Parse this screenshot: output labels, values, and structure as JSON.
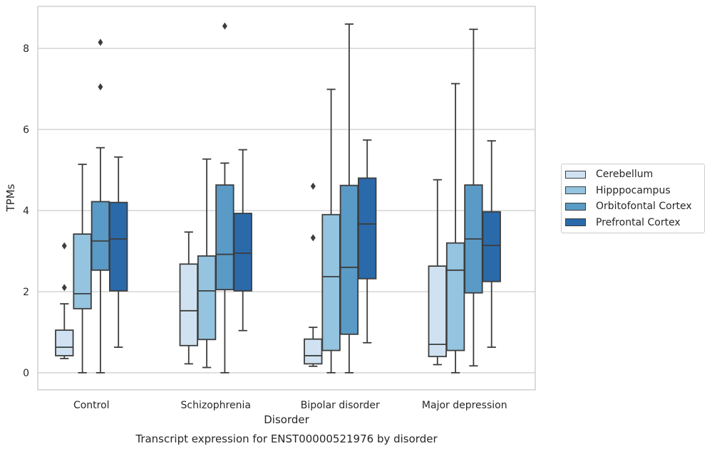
{
  "chart_data": {
    "type": "box",
    "title": "Transcript expression for ENST00000521976 by disorder",
    "xlabel": "Disorder",
    "ylabel": "TPMs",
    "ylim": [
      -0.4,
      9.1
    ],
    "yticks": [
      0,
      2,
      4,
      6,
      8
    ],
    "grid": true,
    "legend_position": "right",
    "categories": [
      "Control",
      "Schizophrenia",
      "Bipolar disorder",
      "Major depression"
    ],
    "series": [
      {
        "name": "Cerebellum",
        "color": "#d0e2f2",
        "boxes": [
          {
            "whislo": 0.35,
            "q1": 0.42,
            "med": 0.63,
            "q3": 1.05,
            "whishi": 1.7,
            "fliers": [
              2.1,
              3.13
            ]
          },
          {
            "whislo": 0.22,
            "q1": 0.67,
            "med": 1.53,
            "q3": 2.68,
            "whishi": 3.47,
            "fliers": []
          },
          {
            "whislo": 0.16,
            "q1": 0.22,
            "med": 0.42,
            "q3": 0.83,
            "whishi": 1.12,
            "fliers": [
              3.33,
              4.6
            ]
          },
          {
            "whislo": 0.2,
            "q1": 0.4,
            "med": 0.7,
            "q3": 2.63,
            "whishi": 4.76,
            "fliers": []
          }
        ]
      },
      {
        "name": "Hipppocampus",
        "color": "#94c4df",
        "boxes": [
          {
            "whislo": 0.0,
            "q1": 1.58,
            "med": 1.95,
            "q3": 3.42,
            "whishi": 5.14,
            "fliers": []
          },
          {
            "whislo": 0.13,
            "q1": 0.82,
            "med": 2.02,
            "q3": 2.88,
            "whishi": 5.27,
            "fliers": []
          },
          {
            "whislo": 0.0,
            "q1": 0.55,
            "med": 2.37,
            "q3": 3.9,
            "whishi": 6.99,
            "fliers": []
          },
          {
            "whislo": 0.0,
            "q1": 0.55,
            "med": 2.53,
            "q3": 3.2,
            "whishi": 7.13,
            "fliers": []
          }
        ]
      },
      {
        "name": "Orbitofontal Cortex",
        "color": "#5a9ac6",
        "boxes": [
          {
            "whislo": 0.0,
            "q1": 2.53,
            "med": 3.25,
            "q3": 4.22,
            "whishi": 5.55,
            "fliers": [
              7.05,
              8.15
            ]
          },
          {
            "whislo": 0.0,
            "q1": 2.05,
            "med": 2.92,
            "q3": 4.63,
            "whishi": 5.17,
            "fliers": [
              8.55
            ]
          },
          {
            "whislo": 0.0,
            "q1": 0.95,
            "med": 2.6,
            "q3": 4.62,
            "whishi": 8.6,
            "fliers": []
          },
          {
            "whislo": 0.17,
            "q1": 1.97,
            "med": 3.3,
            "q3": 4.63,
            "whishi": 8.47,
            "fliers": []
          }
        ]
      },
      {
        "name": "Prefrontal Cortex",
        "color": "#2a6aaa",
        "boxes": [
          {
            "whislo": 0.63,
            "q1": 2.02,
            "med": 3.3,
            "q3": 4.2,
            "whishi": 5.32,
            "fliers": []
          },
          {
            "whislo": 1.04,
            "q1": 2.02,
            "med": 2.95,
            "q3": 3.93,
            "whishi": 5.5,
            "fliers": []
          },
          {
            "whislo": 0.74,
            "q1": 2.32,
            "med": 3.67,
            "q3": 4.8,
            "whishi": 5.74,
            "fliers": []
          },
          {
            "whislo": 0.63,
            "q1": 2.25,
            "med": 3.14,
            "q3": 3.97,
            "whishi": 5.72,
            "fliers": []
          }
        ]
      }
    ]
  }
}
